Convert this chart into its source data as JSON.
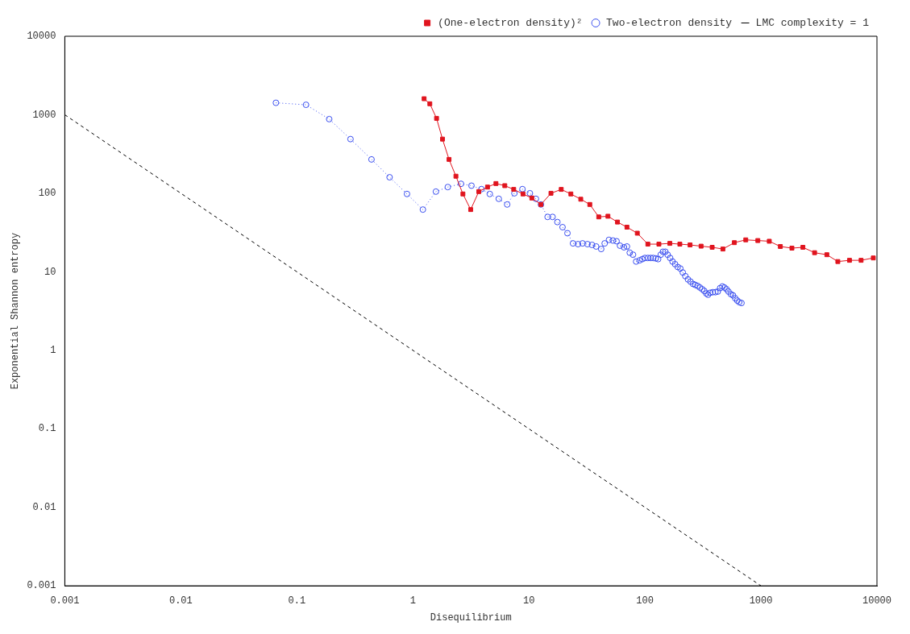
{
  "chart_data": {
    "type": "line",
    "xlabel": "Disequilibrium",
    "ylabel": "Exponential Shannon entropy",
    "log": "xy",
    "grid": false,
    "legend": "top right",
    "xlim": [
      0.001,
      10000
    ],
    "xticks": [
      0.001,
      0.01,
      0.1,
      1,
      10,
      100,
      1000,
      10000
    ],
    "ylim": [
      0.001,
      10000
    ],
    "yticks": [
      0.001,
      0.01,
      0.1,
      1,
      10,
      100,
      1000,
      10000
    ],
    "series": [
      {
        "name": "(One-electron density)²",
        "color": "#e0141e",
        "marker": "square",
        "line_style": "solid",
        "x": [
          1.25,
          1.4,
          1.6,
          1.8,
          2.05,
          2.35,
          2.7,
          3.15,
          3.7,
          4.4,
          5.2,
          6.2,
          7.4,
          8.9,
          10.6,
          12.7,
          15.5,
          19,
          23,
          28,
          33.5,
          40,
          48,
          58,
          70,
          86,
          106,
          132,
          164,
          200,
          245,
          305,
          380,
          470,
          590,
          740,
          940,
          1180,
          1470,
          1850,
          2300,
          2900,
          3700,
          4600,
          5800,
          7300,
          9300
        ],
        "values": [
          1600,
          1380,
          900,
          490,
          270,
          165,
          98,
          62,
          105,
          120,
          133,
          125,
          112,
          98,
          87,
          72,
          100,
          112,
          98,
          84,
          72,
          50,
          51,
          43,
          37,
          31,
          22.5,
          22.5,
          23,
          22.5,
          22,
          21.2,
          20.5,
          19.5,
          23.5,
          25.5,
          25,
          24.5,
          21,
          20,
          20.5,
          17.5,
          16.5,
          13.5,
          14,
          14,
          15
        ]
      },
      {
        "name": "Two-electron density",
        "color": "#3a4ff0",
        "marker": "circle",
        "line_style": "dotted",
        "x": [
          0.066,
          0.12,
          0.19,
          0.29,
          0.44,
          0.63,
          0.89,
          1.22,
          1.58,
          2.0,
          2.6,
          3.2,
          3.9,
          4.6,
          5.5,
          6.5,
          7.5,
          8.8,
          10.2,
          11.5,
          12.7,
          14.5,
          16,
          17.6,
          19.5,
          21.5,
          24,
          26.5,
          29,
          32,
          35,
          38,
          42,
          45,
          49,
          53,
          57,
          61,
          66,
          70,
          74,
          79,
          84,
          90,
          95,
          100,
          106,
          112,
          118,
          124,
          130,
          137,
          143,
          150,
          157,
          165,
          173,
          182,
          192,
          202,
          212,
          223,
          235,
          247,
          260,
          272,
          285,
          298,
          312,
          325,
          338,
          350,
          365,
          385,
          405,
          425,
          445,
          465,
          485,
          505,
          525,
          550,
          575,
          600,
          625,
          650,
          680
        ],
        "values": [
          1420,
          1340,
          880,
          490,
          270,
          160,
          98,
          62,
          105,
          120,
          132,
          125,
          113,
          98,
          85,
          72,
          100,
          113,
          100,
          85,
          72,
          50,
          50,
          43,
          37,
          31,
          23,
          22.5,
          23,
          22.5,
          22,
          21,
          19.5,
          23,
          25.5,
          25,
          24.5,
          21.5,
          20.5,
          21,
          17.5,
          16.5,
          13.5,
          14,
          14.5,
          15,
          15,
          15,
          15,
          14.8,
          14.5,
          16.5,
          18,
          18,
          16.5,
          15,
          13.5,
          12.5,
          11.5,
          11,
          9.8,
          8.8,
          8,
          7.5,
          7,
          6.8,
          6.6,
          6.3,
          6,
          5.7,
          5.3,
          5.1,
          5.4,
          5.5,
          5.5,
          5.6,
          6.2,
          6.5,
          6.3,
          6,
          5.6,
          5.2,
          5,
          4.6,
          4.3,
          4.1,
          4
        ]
      },
      {
        "name": "LMC complexity = 1",
        "color": "#000000",
        "marker": "none",
        "line_style": "dashed",
        "x": [
          0.001,
          1000
        ],
        "values": [
          1000,
          0.001
        ]
      }
    ]
  }
}
